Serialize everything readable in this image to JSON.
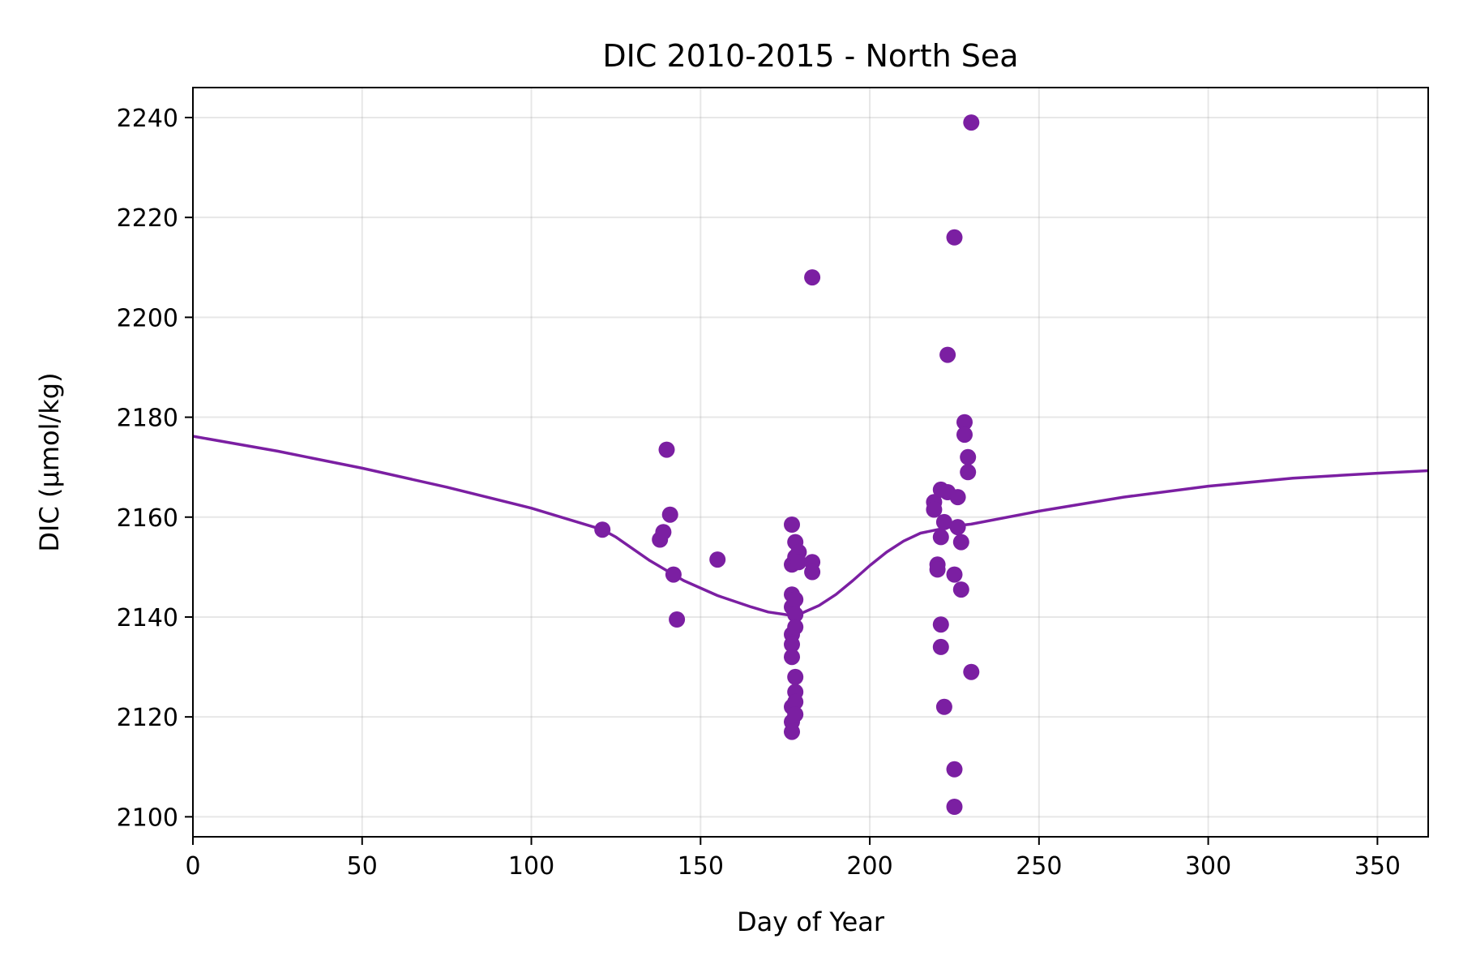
{
  "chart_data": {
    "type": "scatter",
    "title": "DIC 2010-2015 - North Sea",
    "xlabel": "Day of Year",
    "ylabel": "DIC (µmol/kg)",
    "xlim": [
      0,
      365
    ],
    "ylim": [
      2096,
      2246
    ],
    "xticks": [
      0,
      50,
      100,
      150,
      200,
      250,
      300,
      350
    ],
    "yticks": [
      2100,
      2120,
      2140,
      2160,
      2180,
      2200,
      2220,
      2240
    ],
    "grid": true,
    "color": "#7b1fa2",
    "series": [
      {
        "type": "scatter",
        "points": [
          [
            121,
            2157.5
          ],
          [
            138,
            2155.5
          ],
          [
            139,
            2157
          ],
          [
            140,
            2173.5
          ],
          [
            141,
            2160.5
          ],
          [
            142,
            2148.5
          ],
          [
            143,
            2139.5
          ],
          [
            155,
            2151.5
          ],
          [
            177,
            2158.5
          ],
          [
            177,
            2150.5
          ],
          [
            177,
            2144.5
          ],
          [
            177,
            2142
          ],
          [
            177,
            2136.5
          ],
          [
            177,
            2134.5
          ],
          [
            177,
            2132
          ],
          [
            177,
            2122
          ],
          [
            177,
            2119
          ],
          [
            177,
            2117
          ],
          [
            178,
            2155
          ],
          [
            178,
            2152
          ],
          [
            178,
            2143.5
          ],
          [
            178,
            2140.5
          ],
          [
            178,
            2138
          ],
          [
            178,
            2128
          ],
          [
            178,
            2125
          ],
          [
            178,
            2123
          ],
          [
            178,
            2120.5
          ],
          [
            179,
            2153
          ],
          [
            179,
            2151
          ],
          [
            183,
            2208
          ],
          [
            183,
            2151
          ],
          [
            183,
            2149
          ],
          [
            219,
            2163
          ],
          [
            219,
            2161.5
          ],
          [
            220,
            2150.5
          ],
          [
            220,
            2149.5
          ],
          [
            221,
            2165.5
          ],
          [
            221,
            2156
          ],
          [
            221,
            2138.5
          ],
          [
            221,
            2134
          ],
          [
            222,
            2159
          ],
          [
            222,
            2122
          ],
          [
            223,
            2192.5
          ],
          [
            223,
            2165
          ],
          [
            225,
            2216
          ],
          [
            225,
            2148.5
          ],
          [
            225,
            2109.5
          ],
          [
            225,
            2102
          ],
          [
            226,
            2164
          ],
          [
            226,
            2158
          ],
          [
            227,
            2155
          ],
          [
            227,
            2145.5
          ],
          [
            228,
            2179
          ],
          [
            228,
            2176.5
          ],
          [
            229,
            2172
          ],
          [
            229,
            2169
          ],
          [
            230,
            2239
          ],
          [
            230,
            2129
          ]
        ]
      },
      {
        "type": "line",
        "points": [
          [
            0,
            2176.2
          ],
          [
            25,
            2173.2
          ],
          [
            50,
            2169.8
          ],
          [
            75,
            2166
          ],
          [
            100,
            2161.8
          ],
          [
            121,
            2157.5
          ],
          [
            125,
            2156
          ],
          [
            135,
            2151.3
          ],
          [
            145,
            2147.3
          ],
          [
            155,
            2144.3
          ],
          [
            165,
            2142
          ],
          [
            170,
            2141
          ],
          [
            176,
            2140.4
          ],
          [
            180,
            2140.8
          ],
          [
            185,
            2142.3
          ],
          [
            190,
            2144.5
          ],
          [
            195,
            2147.3
          ],
          [
            200,
            2150.3
          ],
          [
            205,
            2153
          ],
          [
            210,
            2155.2
          ],
          [
            215,
            2156.8
          ],
          [
            220,
            2157.5
          ],
          [
            225,
            2158.2
          ],
          [
            230,
            2158.6
          ],
          [
            250,
            2161.2
          ],
          [
            275,
            2164
          ],
          [
            300,
            2166.2
          ],
          [
            325,
            2167.8
          ],
          [
            350,
            2168.8
          ],
          [
            365,
            2169.3
          ]
        ]
      }
    ]
  }
}
